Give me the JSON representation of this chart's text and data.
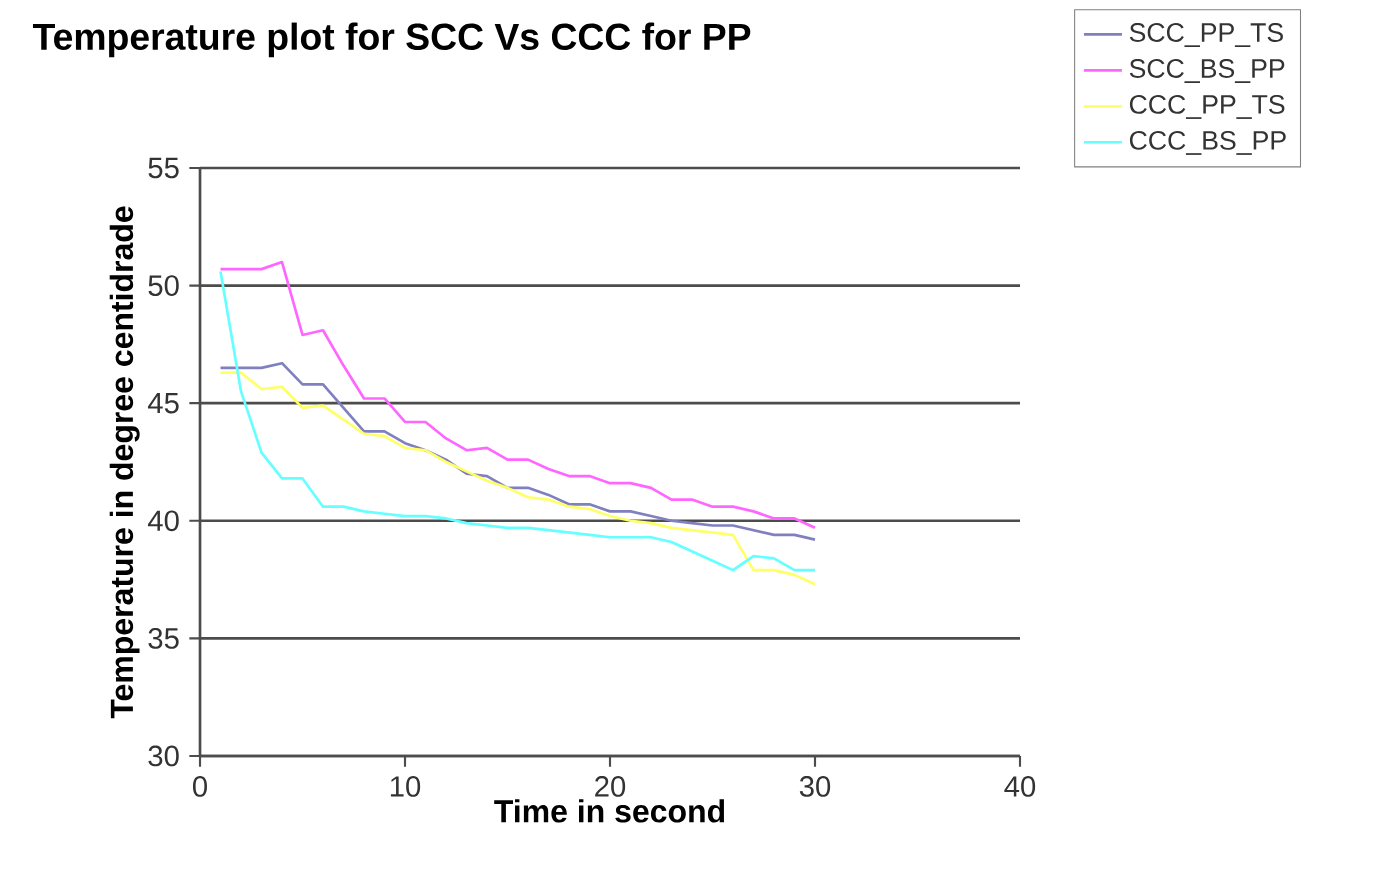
{
  "chart_data": {
    "type": "line",
    "title": "Temperature plot for SCC Vs CCC for PP",
    "xlabel": "Time in second",
    "ylabel": "Temperature in degree centidrade",
    "x": [
      1,
      2,
      3,
      4,
      5,
      6,
      7,
      8,
      9,
      10,
      11,
      12,
      13,
      14,
      15,
      16,
      17,
      18,
      19,
      20,
      21,
      22,
      23,
      24,
      25,
      26,
      27,
      28,
      29,
      30
    ],
    "series": [
      {
        "name": "SCC_PP_TS",
        "color": "#8080c0",
        "values": [
          46.5,
          46.5,
          46.5,
          46.7,
          45.8,
          45.8,
          44.8,
          43.8,
          43.8,
          43.3,
          43.0,
          42.6,
          42.0,
          41.9,
          41.4,
          41.4,
          41.1,
          40.7,
          40.7,
          40.4,
          40.4,
          40.2,
          40.0,
          39.9,
          39.8,
          39.8,
          39.6,
          39.4,
          39.4,
          39.2
        ]
      },
      {
        "name": "SCC_BS_PP",
        "color": "#ff66ff",
        "values": [
          50.7,
          50.7,
          50.7,
          51.0,
          47.9,
          48.1,
          46.6,
          45.2,
          45.2,
          44.2,
          44.2,
          43.5,
          43.0,
          43.1,
          42.6,
          42.6,
          42.2,
          41.9,
          41.9,
          41.6,
          41.6,
          41.4,
          40.9,
          40.9,
          40.6,
          40.6,
          40.4,
          40.1,
          40.1,
          39.7
        ]
      },
      {
        "name": "CCC_PP_TS",
        "color": "#ffff66",
        "values": [
          46.3,
          46.3,
          45.6,
          45.7,
          44.8,
          44.9,
          44.3,
          43.7,
          43.6,
          43.1,
          43.0,
          42.5,
          42.1,
          41.7,
          41.4,
          41.0,
          40.9,
          40.6,
          40.5,
          40.2,
          40.0,
          39.9,
          39.7,
          39.6,
          39.5,
          39.4,
          37.9,
          37.9,
          37.7,
          37.3
        ]
      },
      {
        "name": "CCC_BS_PP",
        "color": "#66ffff",
        "values": [
          50.6,
          45.5,
          42.9,
          41.8,
          41.8,
          40.6,
          40.6,
          40.4,
          40.3,
          40.2,
          40.2,
          40.1,
          39.9,
          39.8,
          39.7,
          39.7,
          39.6,
          39.5,
          39.4,
          39.3,
          39.3,
          39.3,
          39.1,
          38.7,
          38.3,
          37.9,
          38.5,
          38.4,
          37.9,
          37.9
        ]
      }
    ],
    "xlim": [
      0,
      40
    ],
    "ylim": [
      30,
      55
    ],
    "xticks": [
      0,
      10,
      20,
      30,
      40
    ],
    "yticks": [
      30,
      35,
      40,
      45,
      50,
      55
    ],
    "grid": "y",
    "legend": "top right",
    "marker": "none",
    "line_style": "solid"
  }
}
